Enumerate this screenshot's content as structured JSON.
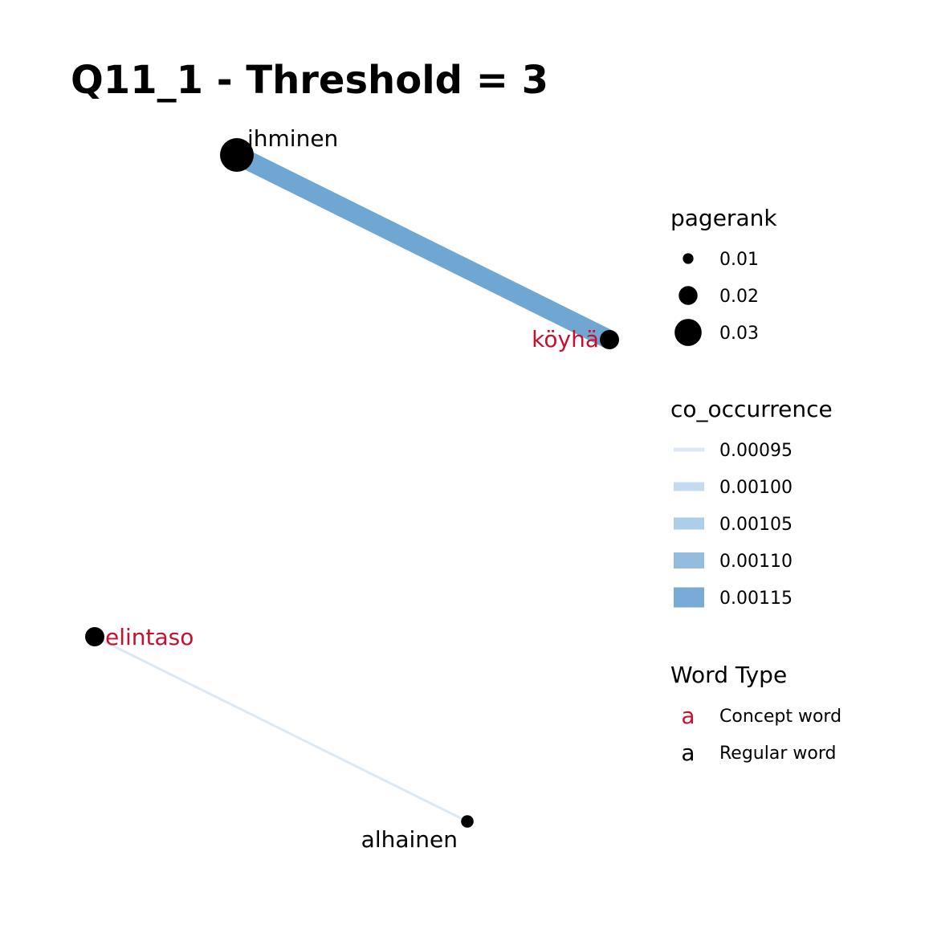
{
  "title": "Q11_1 - Threshold = 3",
  "colors": {
    "concept": "#c8102e",
    "regular": "#000000",
    "node_fill": "#000000"
  },
  "nodes": [
    {
      "id": "ihminen",
      "label": "ihminen",
      "type": "regular",
      "pagerank": 0.03
    },
    {
      "id": "koyha",
      "label": "köyhä",
      "type": "concept",
      "pagerank": 0.015
    },
    {
      "id": "elintaso",
      "label": "elintaso",
      "type": "concept",
      "pagerank": 0.015
    },
    {
      "id": "alhainen",
      "label": "alhainen",
      "type": "regular",
      "pagerank": 0.008
    }
  ],
  "edges": [
    {
      "source": "ihminen",
      "target": "koyha",
      "co_occurrence": 0.00118,
      "color": "#6fa6d2"
    },
    {
      "source": "elintaso",
      "target": "alhainen",
      "co_occurrence": 0.00095,
      "color": "#dce9f5"
    }
  ],
  "legend": {
    "pagerank": {
      "title": "pagerank",
      "items": [
        {
          "label": "0.01",
          "value": 0.01
        },
        {
          "label": "0.02",
          "value": 0.02
        },
        {
          "label": "0.03",
          "value": 0.03
        }
      ]
    },
    "co_occurrence": {
      "title": "co_occurrence",
      "items": [
        {
          "label": "0.00095",
          "value": 0.00095,
          "color": "#dce9f5"
        },
        {
          "label": "0.00100",
          "value": 0.001,
          "color": "#c4daee"
        },
        {
          "label": "0.00105",
          "value": 0.00105,
          "color": "#aecde7"
        },
        {
          "label": "0.00110",
          "value": 0.0011,
          "color": "#94bcdf"
        },
        {
          "label": "0.00115",
          "value": 0.00115,
          "color": "#7aabd8"
        }
      ]
    },
    "word_type": {
      "title": "Word Type",
      "glyph": "a",
      "items": [
        {
          "label": "Concept word",
          "type": "concept"
        },
        {
          "label": "Regular word",
          "type": "regular"
        }
      ]
    }
  }
}
